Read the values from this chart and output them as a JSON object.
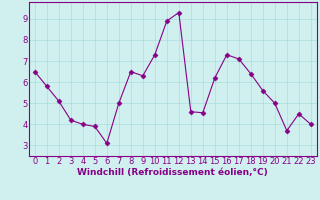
{
  "x": [
    0,
    1,
    2,
    3,
    4,
    5,
    6,
    7,
    8,
    9,
    10,
    11,
    12,
    13,
    14,
    15,
    16,
    17,
    18,
    19,
    20,
    21,
    22,
    23
  ],
  "y": [
    6.5,
    5.8,
    5.1,
    4.2,
    4.0,
    3.9,
    3.1,
    5.0,
    6.5,
    6.3,
    7.3,
    8.9,
    9.3,
    4.6,
    4.55,
    6.2,
    7.3,
    7.1,
    6.4,
    5.6,
    5.0,
    3.7,
    4.5,
    4.0
  ],
  "line_color": "#880088",
  "marker": "D",
  "marker_size": 2.5,
  "bg_color": "#cff0ee",
  "grid_color": "#aadddd",
  "xlabel": "Windchill (Refroidissement éolien,°C)",
  "xlim": [
    -0.5,
    23.5
  ],
  "ylim": [
    2.5,
    9.8
  ],
  "yticks": [
    3,
    4,
    5,
    6,
    7,
    8,
    9
  ],
  "xticks": [
    0,
    1,
    2,
    3,
    4,
    5,
    6,
    7,
    8,
    9,
    10,
    11,
    12,
    13,
    14,
    15,
    16,
    17,
    18,
    19,
    20,
    21,
    22,
    23
  ],
  "label_color": "#880088",
  "label_fontsize": 6,
  "xlabel_fontsize": 6.5,
  "axis_color": "#880088",
  "linewidth": 0.8
}
